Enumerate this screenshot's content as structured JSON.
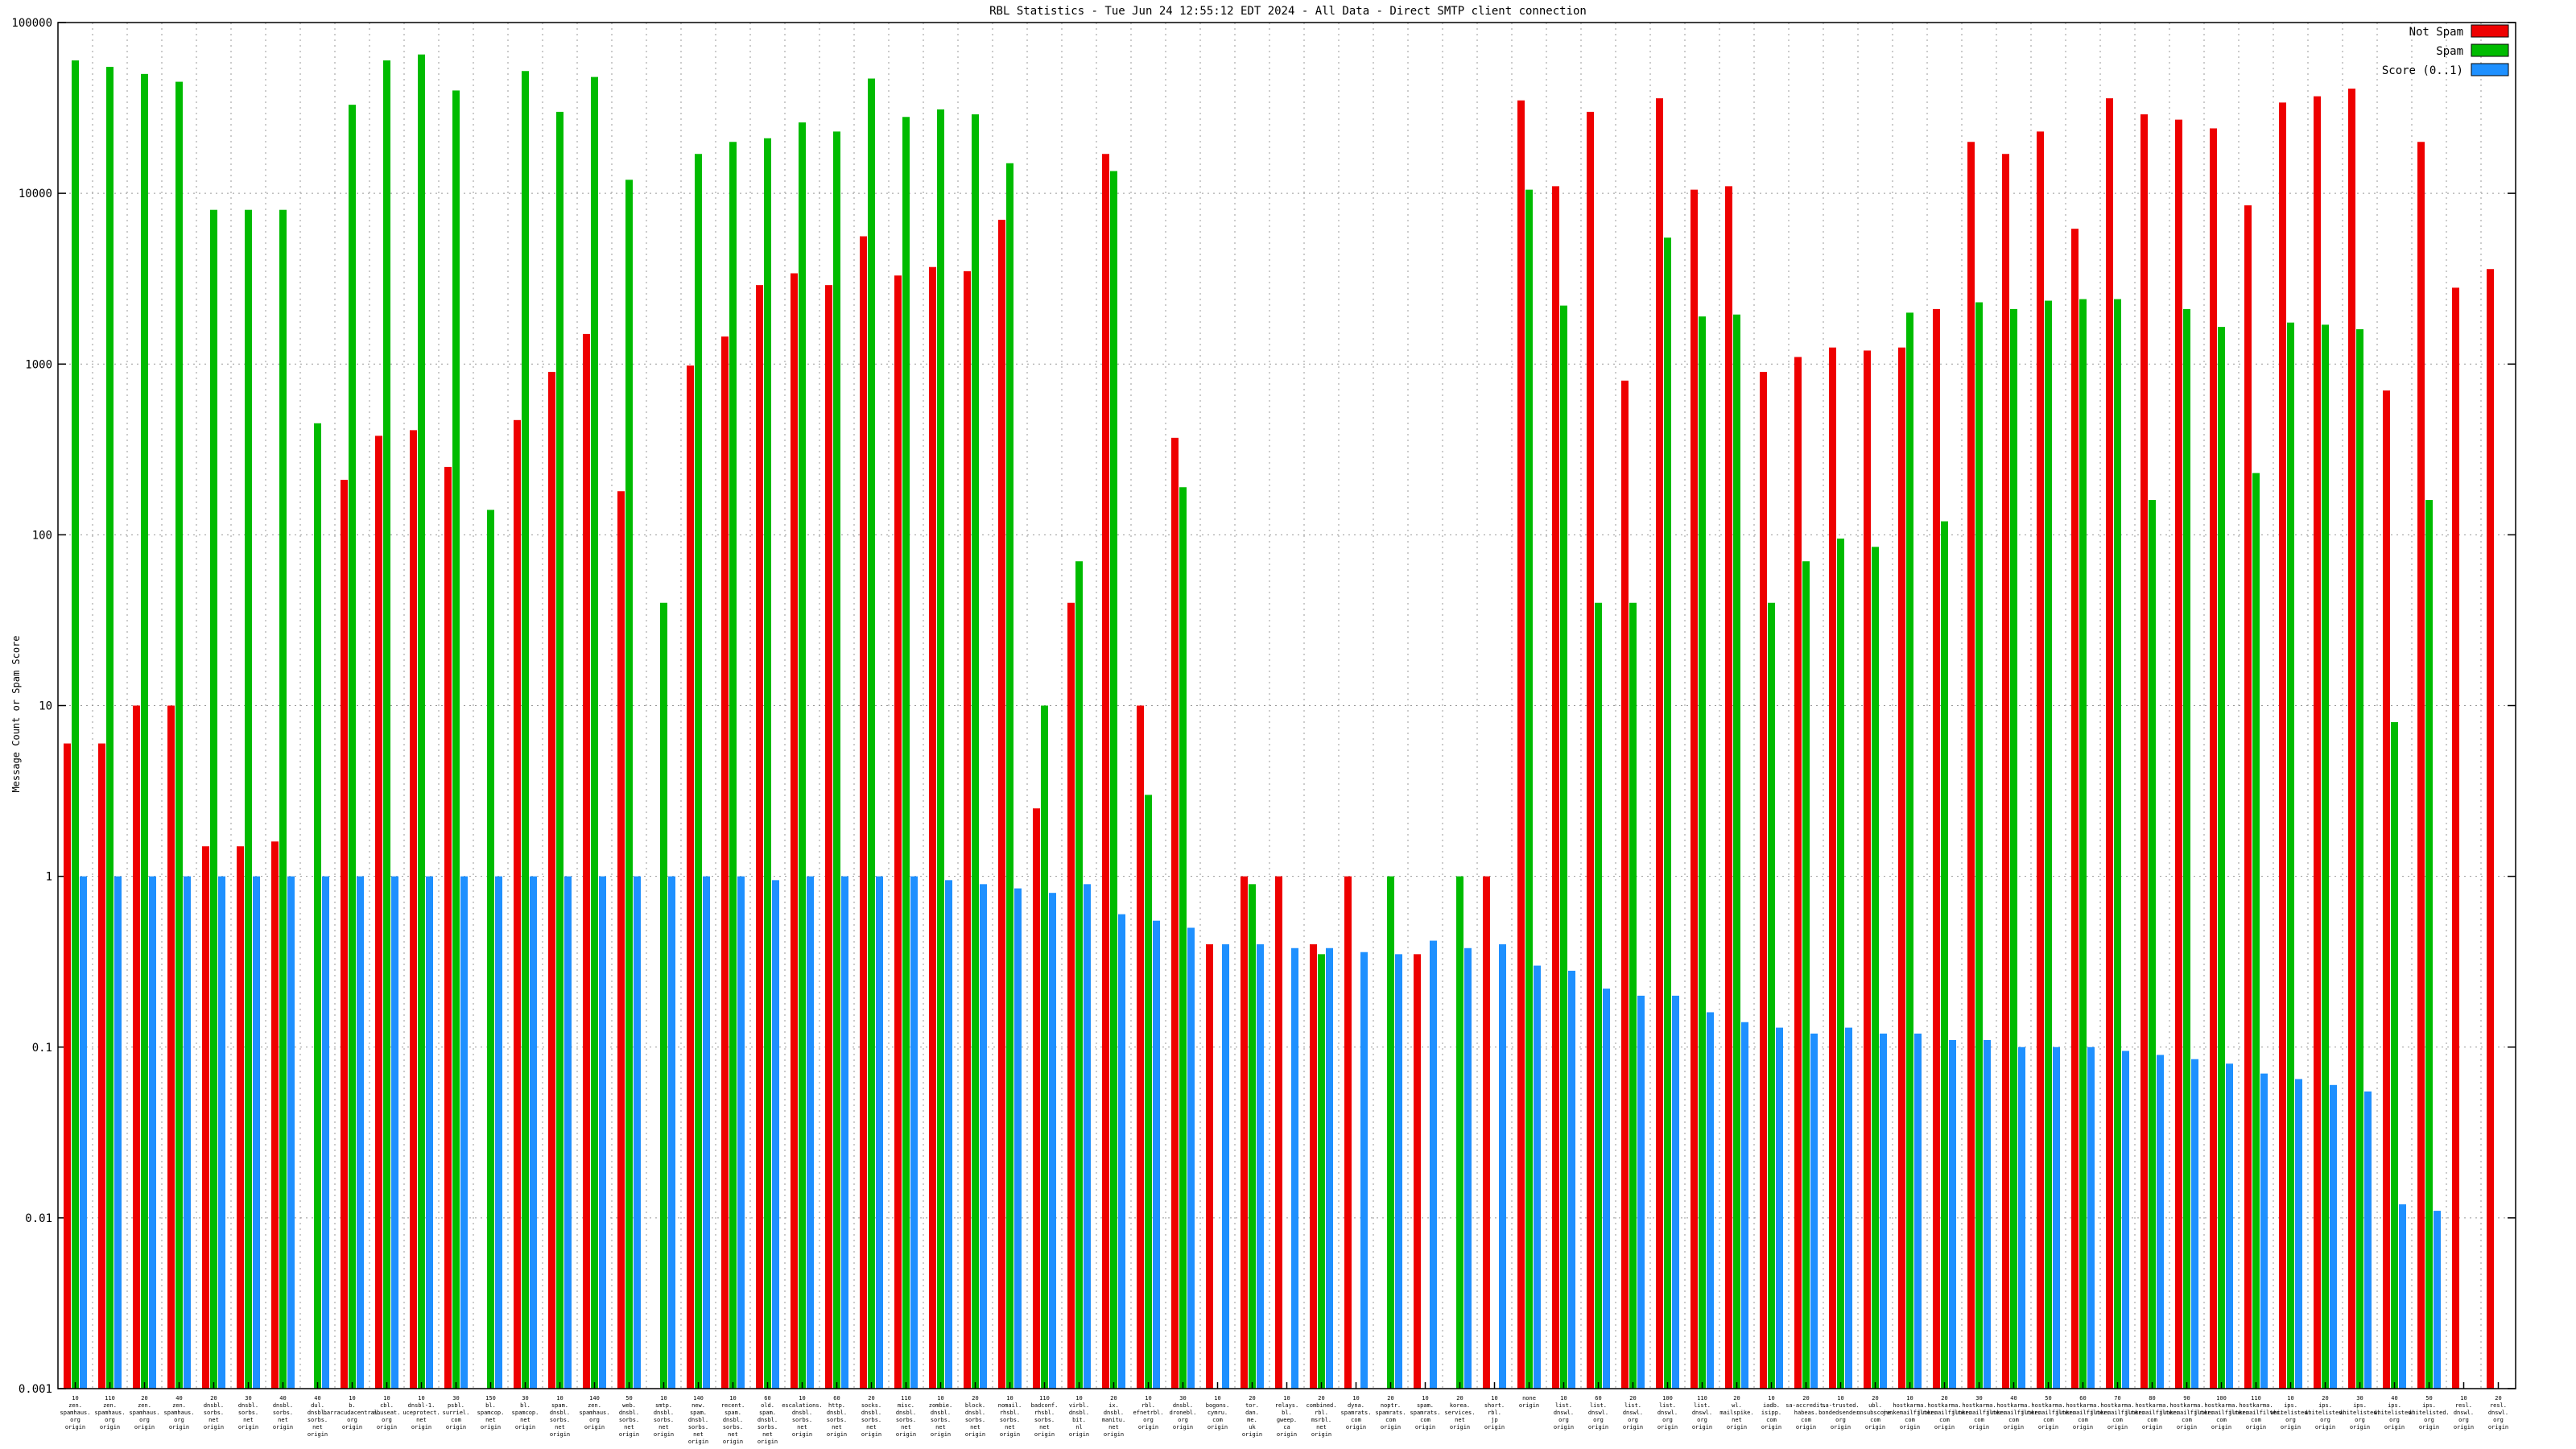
{
  "title": "RBL Statistics - Tue Jun 24 12:55:12 EDT 2024 - All Data - Direct SMTP client connection",
  "ylabel": "Message Count or Spam Score",
  "legend": [
    {
      "label": "Not Spam",
      "color": "#ee0000"
    },
    {
      "label": "Spam",
      "color": "#00bb00"
    },
    {
      "label": "Score (0..1)",
      "color": "#1e90ff"
    }
  ],
  "colors": {
    "not_spam": "#ee0000",
    "spam": "#00bb00",
    "score": "#1e90ff",
    "grid": "#9a9a9a",
    "background": "#ffffff"
  },
  "chart_data": {
    "type": "bar",
    "scale": "log",
    "title": "RBL Statistics - Tue Jun 24 12:55:12 EDT 2024 - All Data - Direct SMTP client connection",
    "xlabel": "",
    "ylabel": "Message Count or Spam Score",
    "ylim": [
      0.001,
      100000
    ],
    "yticks": [
      100000,
      10000,
      1000,
      100,
      10,
      1,
      0.1,
      0.01,
      0.001
    ],
    "grid": true,
    "legend_position": "top-right",
    "categories": [
      [
        "10",
        "zen.",
        "spamhaus.",
        "org",
        "origin"
      ],
      [
        "110",
        "zen.",
        "spamhaus.",
        "org",
        "origin"
      ],
      [
        "20",
        "zen.",
        "spamhaus.",
        "org",
        "origin"
      ],
      [
        "40",
        "zen.",
        "spamhaus.",
        "org",
        "origin"
      ],
      [
        "20",
        "dnsbl.",
        "sorbs.",
        "net",
        "origin"
      ],
      [
        "30",
        "dnsbl.",
        "sorbs.",
        "net",
        "origin"
      ],
      [
        "40",
        "dnsbl.",
        "sorbs.",
        "net",
        "origin"
      ],
      [
        "40",
        "dul.",
        "dnsbl.",
        "sorbs.",
        "net",
        "origin"
      ],
      [
        "10",
        "b.",
        "barracudacentral.",
        "org",
        "origin"
      ],
      [
        "10",
        "cbl.",
        "abuseat.",
        "org",
        "origin"
      ],
      [
        "10",
        "dnsbl-1.",
        "uceprotect.",
        "net",
        "origin"
      ],
      [
        "30",
        "psbl.",
        "surriel.",
        "com",
        "origin"
      ],
      [
        "150",
        "bl.",
        "spamcop.",
        "net",
        "origin"
      ],
      [
        "30",
        "bl.",
        "spamcop.",
        "net",
        "origin"
      ],
      [
        "10",
        "spam.",
        "dnsbl.",
        "sorbs.",
        "net",
        "origin"
      ],
      [
        "140",
        "zen.",
        "spamhaus.",
        "org",
        "origin"
      ],
      [
        "50",
        "web.",
        "dnsbl.",
        "sorbs.",
        "net",
        "origin"
      ],
      [
        "10",
        "smtp.",
        "dnsbl.",
        "sorbs.",
        "net",
        "origin"
      ],
      [
        "140",
        "new.",
        "spam.",
        "dnsbl.",
        "sorbs.",
        "net",
        "origin"
      ],
      [
        "10",
        "recent.",
        "spam.",
        "dnsbl.",
        "sorbs.",
        "net",
        "origin"
      ],
      [
        "60",
        "old.",
        "spam.",
        "dnsbl.",
        "sorbs.",
        "net",
        "origin"
      ],
      [
        "10",
        "escalations.",
        "dnsbl.",
        "sorbs.",
        "net",
        "origin"
      ],
      [
        "60",
        "http.",
        "dnsbl.",
        "sorbs.",
        "net",
        "origin"
      ],
      [
        "20",
        "socks.",
        "dnsbl.",
        "sorbs.",
        "net",
        "origin"
      ],
      [
        "110",
        "misc.",
        "dnsbl.",
        "sorbs.",
        "net",
        "origin"
      ],
      [
        "10",
        "zombie.",
        "dnsbl.",
        "sorbs.",
        "net",
        "origin"
      ],
      [
        "20",
        "block.",
        "dnsbl.",
        "sorbs.",
        "net",
        "origin"
      ],
      [
        "10",
        "nomail.",
        "rhsbl.",
        "sorbs.",
        "net",
        "origin"
      ],
      [
        "110",
        "badconf.",
        "rhsbl.",
        "sorbs.",
        "net",
        "origin"
      ],
      [
        "10",
        "virbl.",
        "dnsbl.",
        "bit.",
        "nl",
        "origin"
      ],
      [
        "20",
        "ix.",
        "dnsbl.",
        "manitu.",
        "net",
        "origin"
      ],
      [
        "10",
        "rbl.",
        "efnetrbl.",
        "org",
        "origin"
      ],
      [
        "30",
        "dnsbl.",
        "dronebl.",
        "org",
        "origin"
      ],
      [
        "10",
        "bogons.",
        "cymru.",
        "com",
        "origin"
      ],
      [
        "20",
        "tor.",
        "dan.",
        "me.",
        "uk",
        "origin"
      ],
      [
        "10",
        "relays.",
        "bl.",
        "gweep.",
        "ca",
        "origin"
      ],
      [
        "20",
        "combined.",
        "rbl.",
        "msrbl.",
        "net",
        "origin"
      ],
      [
        "10",
        "dyna.",
        "spamrats.",
        "com",
        "origin"
      ],
      [
        "20",
        "noptr.",
        "spamrats.",
        "com",
        "origin"
      ],
      [
        "10",
        "spam.",
        "spamrats.",
        "com",
        "origin"
      ],
      [
        "20",
        "korea.",
        "services.",
        "net",
        "origin"
      ],
      [
        "10",
        "short.",
        "rbl.",
        "jp",
        "origin"
      ],
      [
        "none",
        "origin"
      ],
      [
        "10",
        "list.",
        "dnswl.",
        "org",
        "origin"
      ],
      [
        "60",
        "list.",
        "dnswl.",
        "org",
        "origin"
      ],
      [
        "20",
        "list.",
        "dnswl.",
        "org",
        "origin"
      ],
      [
        "100",
        "list.",
        "dnswl.",
        "org",
        "origin"
      ],
      [
        "110",
        "list.",
        "dnswl.",
        "org",
        "origin"
      ],
      [
        "20",
        "wl.",
        "mailspike.",
        "net",
        "origin"
      ],
      [
        "10",
        "iadb.",
        "isipp.",
        "com",
        "origin"
      ],
      [
        "20",
        "sa-accredit.",
        "habeas.",
        "com",
        "origin"
      ],
      [
        "10",
        "sa-trusted.",
        "bondedsender.",
        "org",
        "origin"
      ],
      [
        "20",
        "ubl.",
        "unsubscore.",
        "com",
        "origin"
      ],
      [
        "10",
        "hostkarma.",
        "junkemailfilter.",
        "com",
        "origin"
      ],
      [
        "20",
        "hostkarma.",
        "junkemailfilter.",
        "com",
        "origin"
      ],
      [
        "30",
        "hostkarma.",
        "junkemailfilter.",
        "com",
        "origin"
      ],
      [
        "40",
        "hostkarma.",
        "junkemailfilter.",
        "com",
        "origin"
      ],
      [
        "50",
        "hostkarma.",
        "junkemailfilter.",
        "com",
        "origin"
      ],
      [
        "60",
        "hostkarma.",
        "junkemailfilter.",
        "com",
        "origin"
      ],
      [
        "70",
        "hostkarma.",
        "junkemailfilter.",
        "com",
        "origin"
      ],
      [
        "80",
        "hostkarma.",
        "junkemailfilter.",
        "com",
        "origin"
      ],
      [
        "90",
        "hostkarma.",
        "junkemailfilter.",
        "com",
        "origin"
      ],
      [
        "100",
        "hostkarma.",
        "junkemailfilter.",
        "com",
        "origin"
      ],
      [
        "110",
        "hostkarma.",
        "junkemailfilter.",
        "com",
        "origin"
      ],
      [
        "10",
        "ips.",
        "whitelisted.",
        "org",
        "origin"
      ],
      [
        "20",
        "ips.",
        "whitelisted.",
        "org",
        "origin"
      ],
      [
        "30",
        "ips.",
        "whitelisted.",
        "org",
        "origin"
      ],
      [
        "40",
        "ips.",
        "whitelisted.",
        "org",
        "origin"
      ],
      [
        "50",
        "ips.",
        "whitelisted.",
        "org",
        "origin"
      ],
      [
        "10",
        "resl.",
        "dnswl.",
        "org",
        "origin"
      ],
      [
        "20",
        "resl.",
        "dnswl.",
        "org",
        "origin"
      ]
    ],
    "series": [
      {
        "name": "Not Spam",
        "color": "#ee0000",
        "values": [
          6,
          6,
          10,
          10,
          1.5,
          1.5,
          1.6,
          null,
          210,
          380,
          410,
          250,
          null,
          470,
          900,
          1500,
          180,
          null,
          980,
          1450,
          2900,
          3400,
          2900,
          5600,
          3300,
          3700,
          3500,
          7000,
          2.5,
          40,
          17000,
          10,
          370,
          0.4,
          1,
          1,
          0.4,
          1,
          null,
          0.35,
          null,
          1,
          35000,
          11000,
          30000,
          800,
          36000,
          10500,
          11000,
          900,
          1100,
          1250,
          1200,
          1250,
          2100,
          20000,
          17000,
          23000,
          6200,
          36000,
          29000,
          27000,
          24000,
          8500,
          34000,
          37000,
          41000,
          700,
          20000,
          2800,
          3600
        ]
      },
      {
        "name": "Spam",
        "color": "#00bb00",
        "values": [
          60000,
          55000,
          50000,
          45000,
          8000,
          8000,
          8000,
          450,
          33000,
          60000,
          65000,
          40000,
          140,
          52000,
          30000,
          48000,
          12000,
          40,
          17000,
          20000,
          21000,
          26000,
          23000,
          47000,
          28000,
          31000,
          29000,
          15000,
          10,
          70,
          13500,
          3,
          190,
          null,
          0.9,
          null,
          0.35,
          null,
          1,
          null,
          1,
          null,
          10500,
          2200,
          40,
          40,
          5500,
          1900,
          1950,
          40,
          70,
          95,
          85,
          2000,
          120,
          2300,
          2100,
          2350,
          2400,
          2400,
          160,
          2100,
          1650,
          230,
          1750,
          1700,
          1600,
          8,
          160,
          null,
          null
        ]
      },
      {
        "name": "Score (0..1)",
        "color": "#1e90ff",
        "values": [
          1,
          1,
          1,
          1,
          1,
          1,
          1,
          1,
          1,
          1,
          1,
          1,
          1,
          1,
          1,
          1,
          1,
          1,
          1,
          1,
          0.95,
          1,
          1,
          1,
          1,
          0.95,
          0.9,
          0.85,
          0.8,
          0.9,
          0.6,
          0.55,
          0.5,
          0.4,
          0.4,
          0.38,
          0.38,
          0.36,
          0.35,
          0.42,
          0.38,
          0.4,
          0.3,
          0.28,
          0.22,
          0.2,
          0.2,
          0.16,
          0.14,
          0.13,
          0.12,
          0.13,
          0.12,
          0.12,
          0.11,
          0.11,
          0.1,
          0.1,
          0.1,
          0.095,
          0.09,
          0.085,
          0.08,
          0.07,
          0.065,
          0.06,
          0.055,
          0.012,
          0.011,
          null,
          null
        ]
      }
    ]
  }
}
